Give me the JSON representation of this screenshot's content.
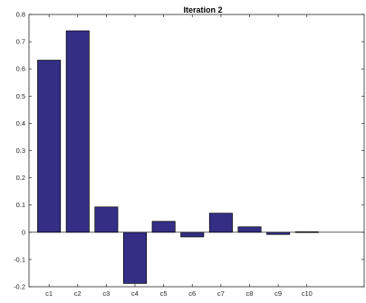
{
  "chart_data": {
    "type": "bar",
    "title": "Iteration 2",
    "xlabel": "",
    "ylabel": "",
    "categories": [
      "c1",
      "c2",
      "c3",
      "c4",
      "c5",
      "c6",
      "c7",
      "c8",
      "c9",
      "c10"
    ],
    "values": [
      0.632,
      0.74,
      0.093,
      -0.188,
      0.04,
      -0.017,
      0.07,
      0.02,
      -0.008,
      0.002
    ],
    "ylim": [
      -0.2,
      0.8
    ],
    "yticks": [
      "-0.2",
      "-0.1",
      "0",
      "0.1",
      "0.2",
      "0.3",
      "0.4",
      "0.5",
      "0.6",
      "0.7",
      "0.8"
    ],
    "xlim": [
      0.3,
      12
    ],
    "grid": false,
    "legend": "none",
    "colors": {
      "bar_fill": "#342e85",
      "bar_stroke": "#000000",
      "axis": "#262626"
    }
  }
}
